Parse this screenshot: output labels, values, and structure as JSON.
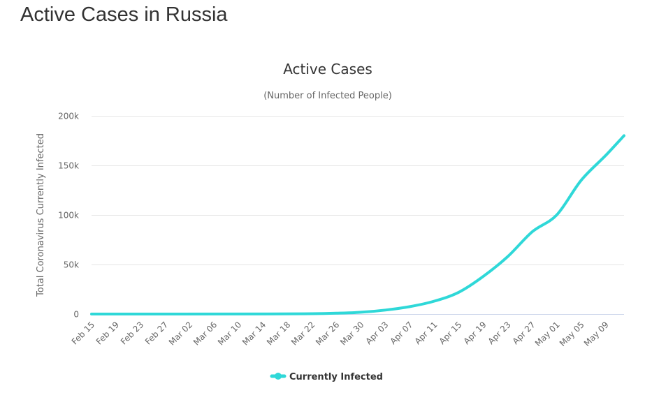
{
  "page": {
    "heading": "Active Cases in Russia"
  },
  "colors": {
    "series": "#2fd8d8",
    "grid": "#e6e6e6",
    "text": "#333333",
    "muted": "#666666"
  },
  "chart_data": {
    "type": "line",
    "title": "Active Cases",
    "subtitle": "(Number of Infected People)",
    "ylabel": "Total Coronavirus Currently Infected",
    "xlabel": "",
    "ylim": [
      0,
      200000
    ],
    "yticks": [
      0,
      50000,
      100000,
      150000,
      200000
    ],
    "ytick_labels": [
      "0",
      "50k",
      "100k",
      "150k",
      "200k"
    ],
    "xticks": [
      "Feb 15",
      "Feb 19",
      "Feb 23",
      "Feb 27",
      "Mar 02",
      "Mar 06",
      "Mar 10",
      "Mar 14",
      "Mar 18",
      "Mar 22",
      "Mar 26",
      "Mar 30",
      "Apr 03",
      "Apr 07",
      "Apr 11",
      "Apr 15",
      "Apr 19",
      "Apr 23",
      "Apr 27",
      "May 01",
      "May 05",
      "May 09"
    ],
    "x_start": "Feb 15",
    "x_end": "May 12",
    "grid": true,
    "legend": "bottom-center",
    "series": [
      {
        "name": "Currently Infected",
        "x": [
          "Feb 15",
          "Mar 14",
          "Mar 22",
          "Mar 26",
          "Mar 30",
          "Apr 03",
          "Apr 07",
          "Apr 11",
          "Apr 15",
          "Apr 19",
          "Apr 23",
          "Apr 27",
          "May 01",
          "May 05",
          "May 09",
          "May 12"
        ],
        "values": [
          2,
          60,
          340,
          900,
          1800,
          4000,
          7500,
          13000,
          22000,
          38000,
          58000,
          83000,
          100000,
          135000,
          160000,
          180000
        ]
      }
    ]
  }
}
